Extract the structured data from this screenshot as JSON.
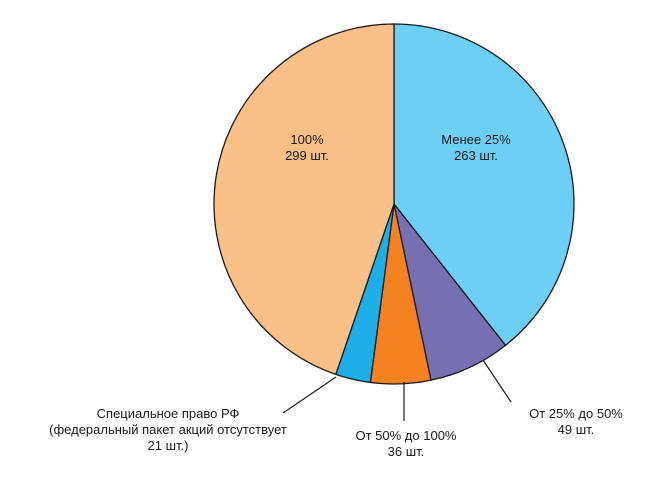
{
  "chart_data": {
    "type": "pie",
    "title": "",
    "start_angle_deg": 0,
    "direction": "clockwise",
    "slices": [
      {
        "label_lines": [
          "Менее 25%",
          "263 шт."
        ],
        "value": 263,
        "color": "#6dcff6",
        "label_inside": true
      },
      {
        "label_lines": [
          "От 25% до 50%",
          "49 шт."
        ],
        "value": 49,
        "color": "#7670b3",
        "label_inside": false
      },
      {
        "label_lines": [
          "От 50% до 100%",
          "36 шт."
        ],
        "value": 36,
        "color": "#f58220",
        "label_inside": false
      },
      {
        "label_lines": [
          "Специальное право РФ",
          "(федеральный пакет акций отсутствует",
          "21 шт.)"
        ],
        "value": 21,
        "color": "#1eaee8",
        "label_inside": false
      },
      {
        "label_lines": [
          "100%",
          "299 шт."
        ],
        "value": 299,
        "color": "#fbbf88",
        "label_inside": true
      }
    ]
  }
}
